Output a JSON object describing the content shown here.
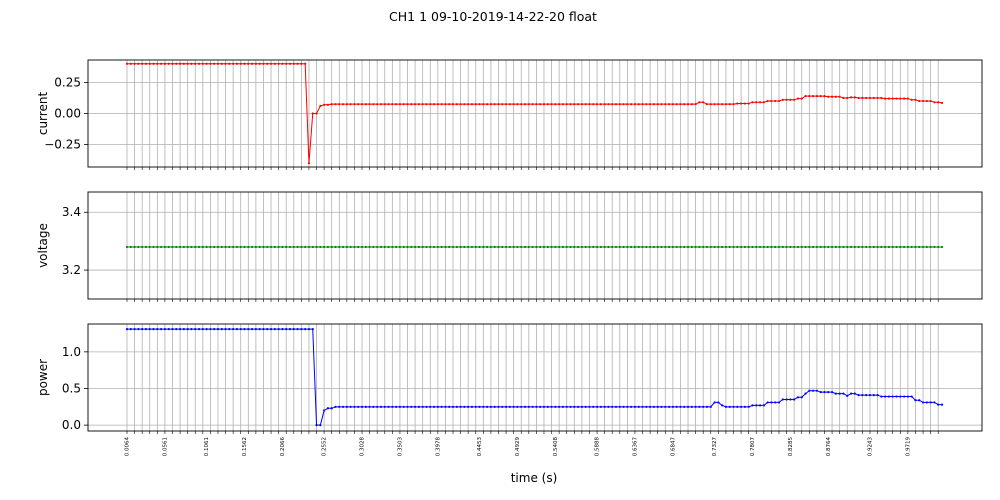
{
  "title": "CH1   1   09-10-2019-14-22-20   float",
  "colors": {
    "current": "#ff0000",
    "voltage": "#008000",
    "power": "#0000ff",
    "grid": "#b0b0b0"
  },
  "chart_data": {
    "type": "line",
    "grid": true,
    "xlabel": "time (s)",
    "x_tick_labels": [
      "0.0064",
      "0.0561",
      "0.1061",
      "0.1562",
      "0.2066",
      "0.2552",
      "0.3028",
      "0.3503",
      "0.3978",
      "0.4453",
      "0.4929",
      "0.5408",
      "0.5888",
      "0.6367",
      "0.6847",
      "0.7327",
      "0.7807",
      "0.8285",
      "0.8764",
      "0.9243",
      "0.9719"
    ],
    "panels": [
      {
        "ylabel": "current",
        "color": "#ff0000",
        "ylim": [
          -0.43,
          0.43
        ],
        "yticks": [
          0.25,
          0.0,
          -0.25
        ],
        "ytick_labels": [
          "0.25",
          "0.00",
          "−0.25"
        ],
        "segments": [
          {
            "from": 0,
            "to": 47,
            "value": 0.4
          },
          {
            "from": 48,
            "to": 48,
            "value": -0.4
          },
          {
            "from": 49,
            "to": 50,
            "value": 0.0
          },
          {
            "from": 51,
            "to": 51,
            "value": 0.06
          },
          {
            "from": 52,
            "to": 53,
            "value": 0.07
          },
          {
            "from": 54,
            "to": 150,
            "value": 0.075
          },
          {
            "from": 151,
            "to": 152,
            "value": 0.09
          },
          {
            "from": 153,
            "to": 160,
            "value": 0.075
          },
          {
            "from": 161,
            "to": 164,
            "value": 0.08
          },
          {
            "from": 165,
            "to": 168,
            "value": 0.09
          },
          {
            "from": 169,
            "to": 172,
            "value": 0.1
          },
          {
            "from": 173,
            "to": 176,
            "value": 0.11
          },
          {
            "from": 177,
            "to": 178,
            "value": 0.12
          },
          {
            "from": 179,
            "to": 184,
            "value": 0.14
          },
          {
            "from": 185,
            "to": 188,
            "value": 0.135
          },
          {
            "from": 189,
            "to": 190,
            "value": 0.125
          },
          {
            "from": 191,
            "to": 192,
            "value": 0.13
          },
          {
            "from": 193,
            "to": 199,
            "value": 0.125
          },
          {
            "from": 200,
            "to": 206,
            "value": 0.12
          },
          {
            "from": 207,
            "to": 208,
            "value": 0.11
          },
          {
            "from": 209,
            "to": 212,
            "value": 0.1
          },
          {
            "from": 213,
            "to": 214,
            "value": 0.09
          },
          {
            "from": 215,
            "to": 215,
            "value": 0.085
          }
        ]
      },
      {
        "ylabel": "voltage",
        "color": "#008000",
        "ylim": [
          3.1,
          3.47
        ],
        "yticks": [
          3.4,
          3.2
        ],
        "ytick_labels": [
          "3.4",
          "3.2"
        ],
        "segments": [
          {
            "from": 0,
            "to": 215,
            "value": 3.28
          }
        ]
      },
      {
        "ylabel": "power",
        "color": "#0000ff",
        "ylim": [
          -0.08,
          1.38
        ],
        "yticks": [
          1.0,
          0.5,
          0.0
        ],
        "ytick_labels": [
          "1.0",
          "0.5",
          "0.0"
        ],
        "segments": [
          {
            "from": 0,
            "to": 49,
            "value": 1.31
          },
          {
            "from": 50,
            "to": 51,
            "value": 0.0
          },
          {
            "from": 52,
            "to": 52,
            "value": 0.2
          },
          {
            "from": 53,
            "to": 54,
            "value": 0.23
          },
          {
            "from": 55,
            "to": 154,
            "value": 0.25
          },
          {
            "from": 155,
            "to": 156,
            "value": 0.31
          },
          {
            "from": 157,
            "to": 157,
            "value": 0.27
          },
          {
            "from": 158,
            "to": 164,
            "value": 0.25
          },
          {
            "from": 165,
            "to": 168,
            "value": 0.27
          },
          {
            "from": 169,
            "to": 172,
            "value": 0.31
          },
          {
            "from": 173,
            "to": 176,
            "value": 0.35
          },
          {
            "from": 177,
            "to": 178,
            "value": 0.38
          },
          {
            "from": 179,
            "to": 179,
            "value": 0.43
          },
          {
            "from": 180,
            "to": 182,
            "value": 0.47
          },
          {
            "from": 183,
            "to": 186,
            "value": 0.45
          },
          {
            "from": 187,
            "to": 189,
            "value": 0.43
          },
          {
            "from": 190,
            "to": 190,
            "value": 0.4
          },
          {
            "from": 191,
            "to": 192,
            "value": 0.43
          },
          {
            "from": 193,
            "to": 198,
            "value": 0.41
          },
          {
            "from": 199,
            "to": 207,
            "value": 0.39
          },
          {
            "from": 208,
            "to": 209,
            "value": 0.34
          },
          {
            "from": 210,
            "to": 213,
            "value": 0.31
          },
          {
            "from": 214,
            "to": 215,
            "value": 0.28
          }
        ]
      }
    ]
  }
}
